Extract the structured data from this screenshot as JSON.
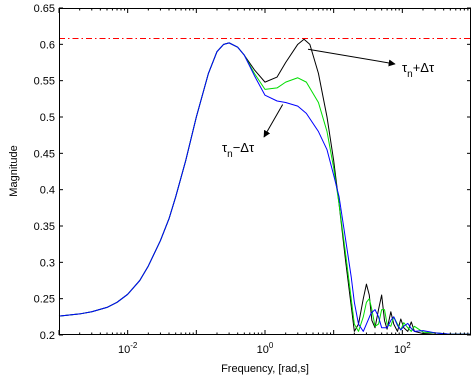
{
  "chart_data": {
    "type": "line",
    "xlabel": "Frequency, [rad,s]",
    "ylabel": "Magnitude",
    "xscale": "log",
    "xlim": [
      0.001,
      1000
    ],
    "ylim": [
      0.2,
      0.65
    ],
    "grid": false,
    "xticks": [
      {
        "value": 0.01,
        "base": "10",
        "exp": "-2"
      },
      {
        "value": 1,
        "base": "10",
        "exp": "0"
      },
      {
        "value": 100,
        "base": "10",
        "exp": "2"
      }
    ],
    "yticks": [
      0.2,
      0.25,
      0.3,
      0.35,
      0.4,
      0.45,
      0.5,
      0.55,
      0.6,
      0.65
    ],
    "ytick_labels": [
      "0.2",
      "0.25",
      "0.3",
      "0.35",
      "0.4",
      "0.45",
      "0.5",
      "0.55",
      "0.6",
      "0.65"
    ],
    "reference_line": {
      "y": 0.608,
      "color": "#ff0000",
      "style": "dash-dot"
    },
    "series": [
      {
        "color": "#000000",
        "points": [
          [
            0.001,
            0.226
          ],
          [
            0.002,
            0.229
          ],
          [
            0.003,
            0.232
          ],
          [
            0.005,
            0.238
          ],
          [
            0.007,
            0.245
          ],
          [
            0.01,
            0.256
          ],
          [
            0.015,
            0.275
          ],
          [
            0.02,
            0.295
          ],
          [
            0.03,
            0.33
          ],
          [
            0.04,
            0.36
          ],
          [
            0.05,
            0.39
          ],
          [
            0.07,
            0.44
          ],
          [
            0.1,
            0.5
          ],
          [
            0.15,
            0.56
          ],
          [
            0.2,
            0.59
          ],
          [
            0.25,
            0.6
          ],
          [
            0.3,
            0.602
          ],
          [
            0.4,
            0.596
          ],
          [
            0.5,
            0.585
          ],
          [
            0.7,
            0.565
          ],
          [
            1.0,
            0.548
          ],
          [
            1.5,
            0.555
          ],
          [
            2.0,
            0.575
          ],
          [
            3.0,
            0.6
          ],
          [
            3.7,
            0.607
          ],
          [
            4.5,
            0.6
          ],
          [
            6,
            0.56
          ],
          [
            8,
            0.5
          ],
          [
            10,
            0.44
          ],
          [
            12,
            0.38
          ],
          [
            15,
            0.3
          ],
          [
            18,
            0.24
          ],
          [
            20,
            0.205
          ],
          [
            23,
            0.215
          ],
          [
            27,
            0.25
          ],
          [
            30,
            0.27
          ],
          [
            33,
            0.255
          ],
          [
            36,
            0.22
          ],
          [
            40,
            0.21
          ],
          [
            45,
            0.235
          ],
          [
            50,
            0.255
          ],
          [
            55,
            0.22
          ],
          [
            60,
            0.208
          ],
          [
            68,
            0.232
          ],
          [
            75,
            0.215
          ],
          [
            85,
            0.205
          ],
          [
            95,
            0.222
          ],
          [
            105,
            0.21
          ],
          [
            120,
            0.205
          ],
          [
            135,
            0.218
          ],
          [
            150,
            0.205
          ],
          [
            200,
            0.202
          ],
          [
            300,
            0.203
          ],
          [
            500,
            0.201
          ],
          [
            1000,
            0.201
          ]
        ]
      },
      {
        "color": "#00dd00",
        "points": [
          [
            0.001,
            0.226
          ],
          [
            0.002,
            0.229
          ],
          [
            0.003,
            0.232
          ],
          [
            0.005,
            0.238
          ],
          [
            0.007,
            0.245
          ],
          [
            0.01,
            0.256
          ],
          [
            0.015,
            0.275
          ],
          [
            0.02,
            0.295
          ],
          [
            0.03,
            0.33
          ],
          [
            0.04,
            0.36
          ],
          [
            0.05,
            0.39
          ],
          [
            0.07,
            0.44
          ],
          [
            0.1,
            0.5
          ],
          [
            0.15,
            0.56
          ],
          [
            0.2,
            0.59
          ],
          [
            0.25,
            0.6
          ],
          [
            0.3,
            0.602
          ],
          [
            0.4,
            0.596
          ],
          [
            0.5,
            0.585
          ],
          [
            0.7,
            0.56
          ],
          [
            1.0,
            0.538
          ],
          [
            1.5,
            0.54
          ],
          [
            2.0,
            0.548
          ],
          [
            3.0,
            0.554
          ],
          [
            4.0,
            0.548
          ],
          [
            6,
            0.52
          ],
          [
            8,
            0.48
          ],
          [
            10,
            0.43
          ],
          [
            12,
            0.38
          ],
          [
            15,
            0.31
          ],
          [
            18,
            0.25
          ],
          [
            20,
            0.215
          ],
          [
            23,
            0.205
          ],
          [
            27,
            0.225
          ],
          [
            30,
            0.245
          ],
          [
            33,
            0.25
          ],
          [
            36,
            0.235
          ],
          [
            40,
            0.212
          ],
          [
            45,
            0.215
          ],
          [
            50,
            0.235
          ],
          [
            55,
            0.235
          ],
          [
            60,
            0.215
          ],
          [
            68,
            0.212
          ],
          [
            75,
            0.225
          ],
          [
            85,
            0.215
          ],
          [
            95,
            0.207
          ],
          [
            105,
            0.217
          ],
          [
            120,
            0.21
          ],
          [
            135,
            0.205
          ],
          [
            150,
            0.212
          ],
          [
            200,
            0.204
          ],
          [
            300,
            0.203
          ],
          [
            500,
            0.201
          ],
          [
            1000,
            0.201
          ]
        ]
      },
      {
        "color": "#0000ff",
        "points": [
          [
            0.001,
            0.226
          ],
          [
            0.002,
            0.229
          ],
          [
            0.003,
            0.232
          ],
          [
            0.005,
            0.238
          ],
          [
            0.007,
            0.245
          ],
          [
            0.01,
            0.256
          ],
          [
            0.015,
            0.275
          ],
          [
            0.02,
            0.295
          ],
          [
            0.03,
            0.33
          ],
          [
            0.04,
            0.36
          ],
          [
            0.05,
            0.39
          ],
          [
            0.07,
            0.44
          ],
          [
            0.1,
            0.5
          ],
          [
            0.15,
            0.56
          ],
          [
            0.2,
            0.59
          ],
          [
            0.25,
            0.6
          ],
          [
            0.3,
            0.602
          ],
          [
            0.4,
            0.596
          ],
          [
            0.5,
            0.585
          ],
          [
            0.7,
            0.557
          ],
          [
            1.0,
            0.53
          ],
          [
            1.5,
            0.522
          ],
          [
            2.0,
            0.52
          ],
          [
            3.0,
            0.515
          ],
          [
            4.0,
            0.505
          ],
          [
            6,
            0.48
          ],
          [
            8,
            0.455
          ],
          [
            10,
            0.42
          ],
          [
            12,
            0.39
          ],
          [
            15,
            0.33
          ],
          [
            18,
            0.28
          ],
          [
            20,
            0.245
          ],
          [
            23,
            0.215
          ],
          [
            27,
            0.205
          ],
          [
            30,
            0.215
          ],
          [
            35,
            0.23
          ],
          [
            40,
            0.235
          ],
          [
            45,
            0.225
          ],
          [
            50,
            0.21
          ],
          [
            60,
            0.21
          ],
          [
            68,
            0.22
          ],
          [
            75,
            0.225
          ],
          [
            85,
            0.213
          ],
          [
            95,
            0.207
          ],
          [
            105,
            0.212
          ],
          [
            120,
            0.216
          ],
          [
            135,
            0.209
          ],
          [
            150,
            0.205
          ],
          [
            200,
            0.206
          ],
          [
            300,
            0.203
          ],
          [
            500,
            0.201
          ],
          [
            1000,
            0.201
          ]
        ]
      }
    ],
    "annotations": [
      {
        "base": "τ",
        "sub": "n",
        "op": "+Δτ",
        "target": [
          3.7,
          0.607
        ]
      },
      {
        "base": "τ",
        "sub": "n",
        "op": "−Δτ",
        "target": [
          2.0,
          0.52
        ]
      }
    ]
  }
}
